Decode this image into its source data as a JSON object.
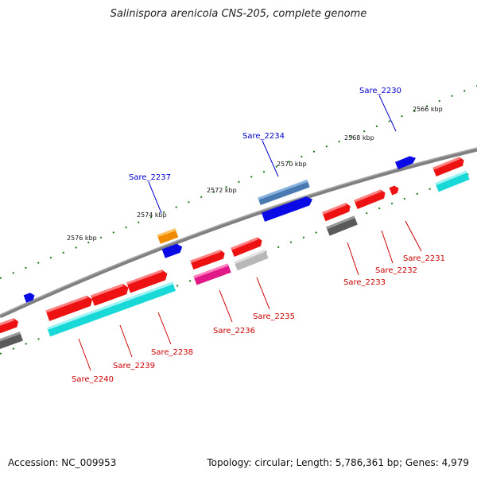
{
  "title": "Salinispora arenicola CNS-205, complete genome",
  "footer": {
    "accession": "Accession: NC_009953",
    "summary": "Topology: circular; Length: 5,786,361 bp; Genes: 4,979"
  },
  "scale_labels": [
    "2566 kbp",
    "2568 kbp",
    "2570 kbp",
    "2572 kbp",
    "2574 kbp",
    "2576 kbp"
  ],
  "gene_labels_forward": [
    "Sare_2230",
    "Sare_2234",
    "Sare_2237"
  ],
  "gene_labels_reverse": [
    "Sare_2231",
    "Sare_2232",
    "Sare_2233",
    "Sare_2235",
    "Sare_2236",
    "Sare_2238",
    "Sare_2239",
    "Sare_2240"
  ],
  "colors": {
    "backbone": "#808080",
    "tick": "#1a7a1a",
    "forward_label": "#0000cc",
    "reverse_label": "#cc0000",
    "blue": "#0a0ae6",
    "steel": "#4a78b0",
    "orange": "#f08a00",
    "red": "#ee1111",
    "cyan": "#18d8d8",
    "dark_gray": "#5a5a5a",
    "light_gray": "#b8b8b8",
    "magenta": "#e01888"
  }
}
